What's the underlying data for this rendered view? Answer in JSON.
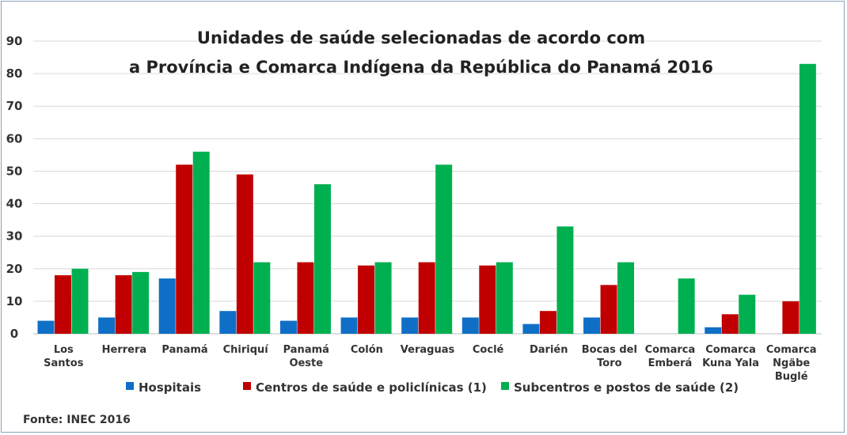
{
  "chart_data": {
    "type": "bar",
    "title_lines": [
      "Unidades de saúde selecionadas de acordo com",
      "a Província e Comarca Indígena da República do Panamá 2016"
    ],
    "categories": [
      [
        "Los",
        "Santos"
      ],
      [
        "Herrera"
      ],
      [
        "Panamá"
      ],
      [
        "Chiriquí"
      ],
      [
        "Panamá",
        "Oeste"
      ],
      [
        "Colón"
      ],
      [
        "Veraguas"
      ],
      [
        "Coclé"
      ],
      [
        "Darién"
      ],
      [
        "Bocas del",
        "Toro"
      ],
      [
        "Comarca",
        "Emberá"
      ],
      [
        "Comarca",
        "Kuna Yala"
      ],
      [
        "Comarca",
        "Ngäbe",
        "Buglé"
      ]
    ],
    "series": [
      {
        "name": "Hospitais",
        "color": "#0f6fc6",
        "values": [
          4,
          5,
          17,
          7,
          4,
          5,
          5,
          5,
          3,
          5,
          0,
          2,
          0
        ]
      },
      {
        "name": "Centros de saúde e policlínicas (1)",
        "color": "#c00000",
        "values": [
          18,
          18,
          52,
          49,
          22,
          21,
          22,
          21,
          7,
          15,
          0,
          6,
          10
        ]
      },
      {
        "name": "Subcentros e postos de saúde (2)",
        "color": "#00b050",
        "values": [
          20,
          19,
          56,
          22,
          46,
          22,
          52,
          22,
          33,
          22,
          17,
          12,
          83
        ]
      }
    ],
    "yticks": [
      "0",
      "10",
      "20",
      "30",
      "40",
      "50",
      "60",
      "70",
      "80",
      "90"
    ],
    "ylim": [
      0,
      90
    ],
    "grid": true,
    "legend_position": "bottom",
    "xlabel": "",
    "ylabel": ""
  },
  "source": "Fonte: INEC 2016"
}
